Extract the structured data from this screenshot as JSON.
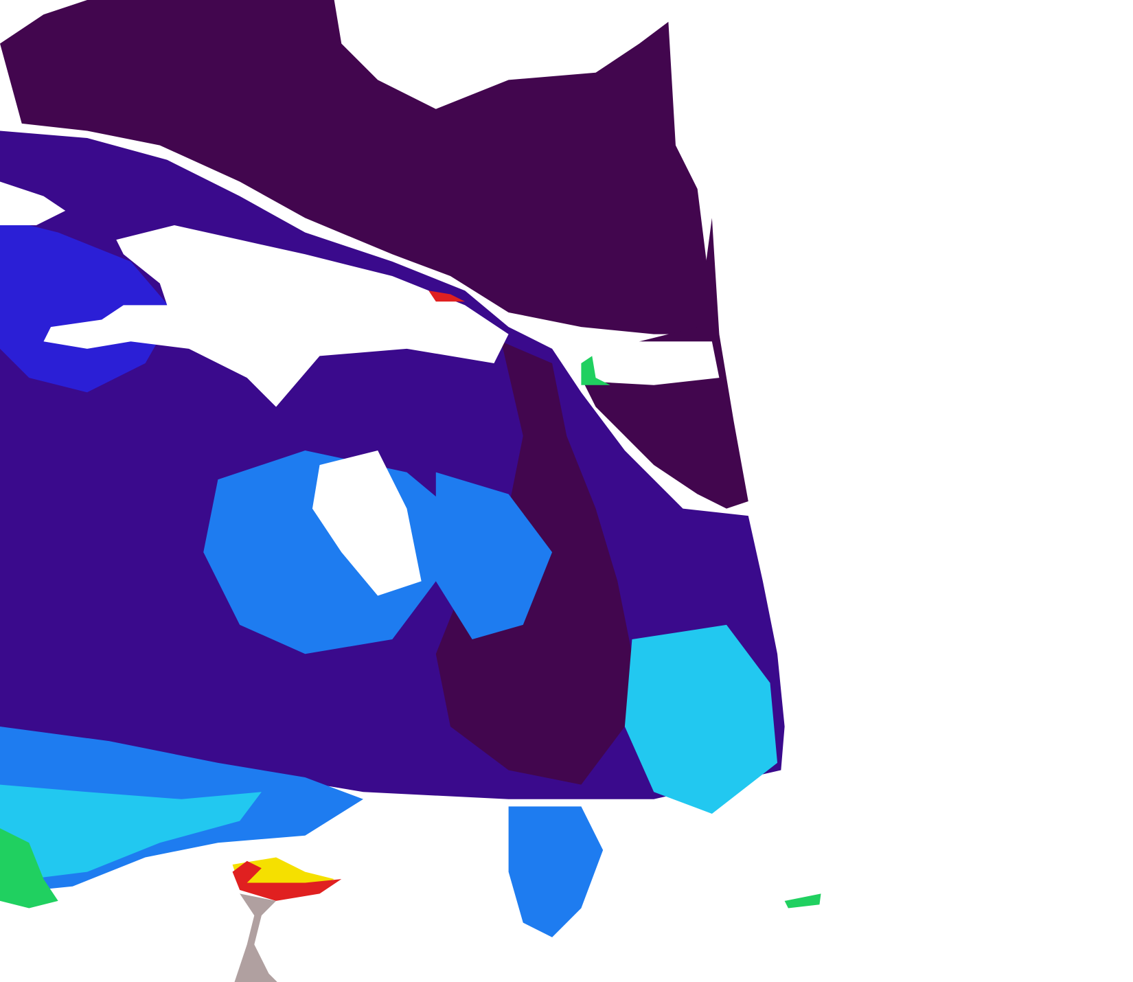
{
  "map": {
    "type": "satellite chlorophyll concentration swath",
    "colors": {
      "background_no_data": "#ffffff",
      "land_mask": "#42064e",
      "low": "#3a0a8c",
      "low_mid": "#2b1fd6",
      "mid": "#1e7cf0",
      "mid_high": "#22c8f0",
      "high": "#20d060",
      "very_high": "#f5e000",
      "extreme": "#e02020",
      "flag": "#b0a0a0"
    }
  }
}
